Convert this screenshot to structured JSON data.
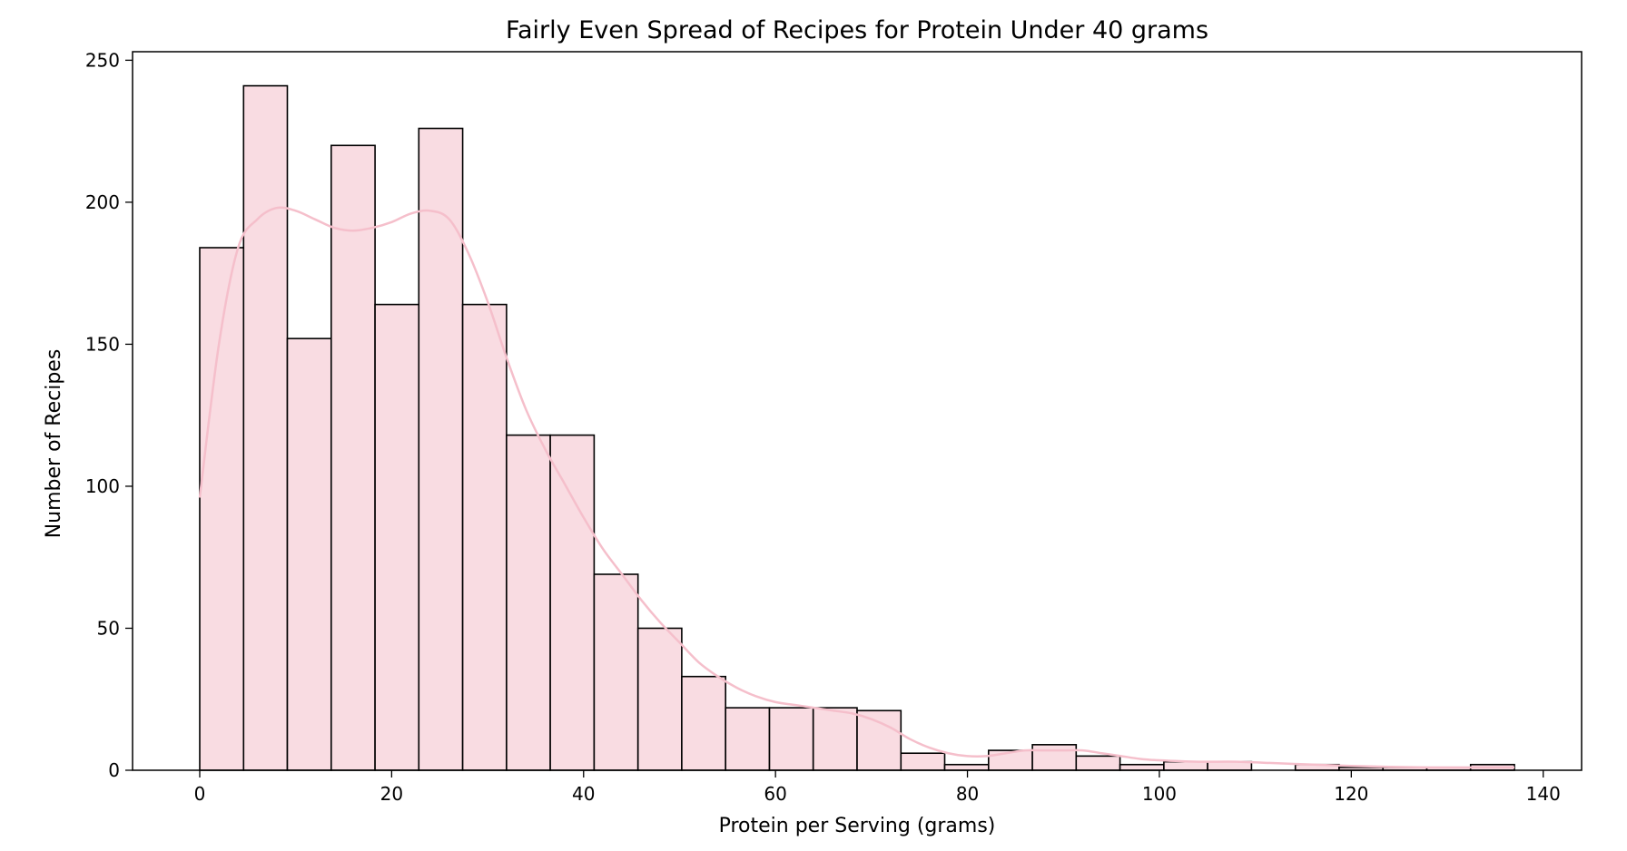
{
  "chart_data": {
    "type": "bar",
    "subtype": "histogram",
    "title": "Fairly Even Spread of Recipes for Protein Under 40 grams",
    "xlabel": "Protein per Serving (grams)",
    "ylabel": "Number of Recipes",
    "xlim": [
      -7,
      144
    ],
    "ylim": [
      0,
      253
    ],
    "xticks": [
      0,
      20,
      40,
      60,
      80,
      100,
      120,
      140
    ],
    "yticks": [
      0,
      50,
      100,
      150,
      200,
      250
    ],
    "grid": false,
    "legend": "none",
    "bins": [
      {
        "x0": 0.0,
        "x1": 4.57,
        "count": 184
      },
      {
        "x0": 4.57,
        "x1": 9.13,
        "count": 241
      },
      {
        "x0": 9.13,
        "x1": 13.7,
        "count": 152
      },
      {
        "x0": 13.7,
        "x1": 18.27,
        "count": 220
      },
      {
        "x0": 18.27,
        "x1": 22.83,
        "count": 164
      },
      {
        "x0": 22.83,
        "x1": 27.4,
        "count": 226
      },
      {
        "x0": 27.4,
        "x1": 31.97,
        "count": 164
      },
      {
        "x0": 31.97,
        "x1": 36.53,
        "count": 118
      },
      {
        "x0": 36.53,
        "x1": 41.1,
        "count": 118
      },
      {
        "x0": 41.1,
        "x1": 45.67,
        "count": 69
      },
      {
        "x0": 45.67,
        "x1": 50.23,
        "count": 50
      },
      {
        "x0": 50.23,
        "x1": 54.8,
        "count": 33
      },
      {
        "x0": 54.8,
        "x1": 59.37,
        "count": 22
      },
      {
        "x0": 59.37,
        "x1": 63.93,
        "count": 22
      },
      {
        "x0": 63.93,
        "x1": 68.5,
        "count": 22
      },
      {
        "x0": 68.5,
        "x1": 73.07,
        "count": 21
      },
      {
        "x0": 73.07,
        "x1": 77.63,
        "count": 6
      },
      {
        "x0": 77.63,
        "x1": 82.2,
        "count": 2
      },
      {
        "x0": 82.2,
        "x1": 86.77,
        "count": 7
      },
      {
        "x0": 86.77,
        "x1": 91.33,
        "count": 9
      },
      {
        "x0": 91.33,
        "x1": 95.9,
        "count": 5
      },
      {
        "x0": 95.9,
        "x1": 100.47,
        "count": 2
      },
      {
        "x0": 100.47,
        "x1": 105.03,
        "count": 3
      },
      {
        "x0": 105.03,
        "x1": 109.6,
        "count": 3
      },
      {
        "x0": 109.6,
        "x1": 114.17,
        "count": 0
      },
      {
        "x0": 114.17,
        "x1": 118.73,
        "count": 2
      },
      {
        "x0": 118.73,
        "x1": 123.3,
        "count": 1
      },
      {
        "x0": 123.3,
        "x1": 127.87,
        "count": 1
      },
      {
        "x0": 127.87,
        "x1": 132.43,
        "count": 1
      },
      {
        "x0": 132.43,
        "x1": 137.0,
        "count": 2
      }
    ],
    "kde_color": "#f5bfcb",
    "bar_color": "#f9dce2",
    "kde": {
      "x": [
        0,
        2,
        4,
        6,
        8,
        10,
        12,
        14,
        16,
        18,
        20,
        22,
        24,
        26,
        28,
        30,
        32,
        34,
        36,
        38,
        40,
        42,
        44,
        46,
        48,
        50,
        52,
        54,
        56,
        58,
        60,
        62,
        64,
        66,
        68,
        70,
        72,
        74,
        76,
        78,
        80,
        82,
        84,
        86,
        88,
        90,
        92,
        94,
        96,
        98,
        100,
        104,
        108,
        112,
        116,
        120,
        124,
        128,
        132,
        137
      ],
      "y": [
        96,
        150,
        184,
        194,
        198,
        197,
        194,
        191,
        190,
        191,
        193,
        196,
        197,
        194,
        182,
        165,
        145,
        127,
        113,
        101,
        89,
        78,
        69,
        60,
        52,
        45,
        38,
        33,
        29,
        26,
        24,
        23,
        22,
        21,
        20,
        18,
        15,
        11,
        8,
        6,
        5,
        5,
        6,
        7,
        7,
        7,
        7,
        6,
        5,
        4,
        3.5,
        3,
        3,
        2.5,
        2,
        1.5,
        1.2,
        1,
        1,
        1
      ]
    }
  }
}
